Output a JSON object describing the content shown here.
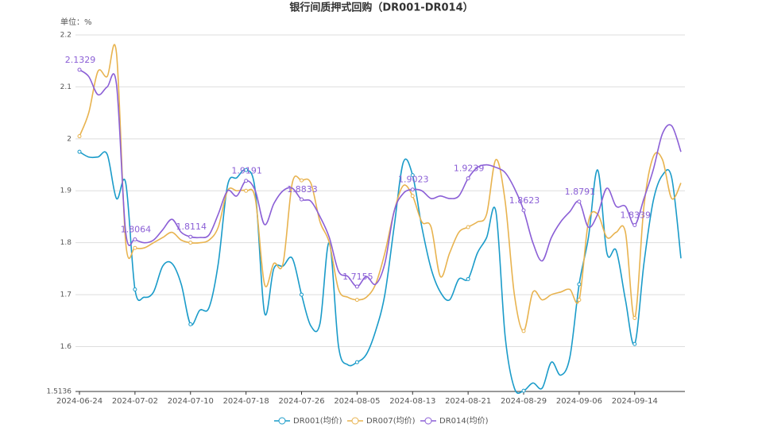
{
  "chart_data": {
    "type": "line",
    "title": "银行间质押式回购（DR001-DR014）",
    "unit_label": "单位：%",
    "categories": [
      "2024-06-24",
      null,
      null,
      null,
      null,
      null,
      "2024-07-02",
      null,
      null,
      null,
      null,
      null,
      "2024-07-10",
      null,
      null,
      null,
      null,
      null,
      "2024-07-18",
      null,
      null,
      null,
      null,
      null,
      "2024-07-26",
      null,
      null,
      null,
      null,
      null,
      "2024-08-05",
      null,
      null,
      null,
      null,
      null,
      "2024-08-13",
      null,
      null,
      null,
      null,
      null,
      "2024-08-21",
      null,
      null,
      null,
      null,
      null,
      "2024-08-29",
      null,
      null,
      null,
      null,
      null,
      "2024-09-06",
      null,
      null,
      null,
      null,
      null,
      "2024-09-14",
      null,
      null,
      null,
      null,
      null
    ],
    "series": [
      {
        "name": "DR001(均价)",
        "color": "#1a9bc9",
        "values": [
          1.975,
          1.965,
          1.965,
          1.97,
          1.885,
          1.915,
          1.71,
          1.695,
          1.705,
          1.755,
          1.76,
          1.72,
          1.643,
          1.67,
          1.675,
          1.76,
          1.91,
          1.925,
          1.94,
          1.9,
          1.665,
          1.75,
          1.755,
          1.77,
          1.7,
          1.64,
          1.645,
          1.8,
          1.6,
          1.565,
          1.57,
          1.585,
          1.63,
          1.7,
          1.83,
          1.955,
          1.93,
          1.83,
          1.75,
          1.705,
          1.69,
          1.73,
          1.73,
          1.78,
          1.81,
          1.86,
          1.62,
          1.52,
          1.515,
          1.53,
          1.52,
          1.57,
          1.545,
          1.58,
          1.72,
          1.81,
          1.94,
          1.78,
          1.785,
          1.69,
          1.605,
          1.76,
          1.88,
          1.93,
          1.925,
          1.77
        ]
      },
      {
        "name": "DR007(均价)",
        "color": "#e8b34f",
        "values": [
          2.005,
          2.05,
          2.13,
          2.12,
          2.165,
          1.8,
          1.79,
          1.79,
          1.8,
          1.81,
          1.82,
          1.805,
          1.8,
          1.8,
          1.805,
          1.83,
          1.9,
          1.9,
          1.9,
          1.885,
          1.72,
          1.76,
          1.76,
          1.915,
          1.92,
          1.915,
          1.84,
          1.8,
          1.71,
          1.695,
          1.69,
          1.695,
          1.72,
          1.78,
          1.86,
          1.91,
          1.89,
          1.84,
          1.83,
          1.735,
          1.78,
          1.82,
          1.83,
          1.84,
          1.855,
          1.96,
          1.88,
          1.7,
          1.63,
          1.705,
          1.69,
          1.7,
          1.705,
          1.71,
          1.69,
          1.84,
          1.855,
          1.81,
          1.82,
          1.82,
          1.655,
          1.87,
          1.965,
          1.96,
          1.885,
          1.915
        ]
      },
      {
        "name": "DR014(均价)",
        "color": "#8b5fd6",
        "values": [
          2.1329,
          2.12,
          2.085,
          2.1,
          2.105,
          1.82,
          1.8064,
          1.8,
          1.805,
          1.825,
          1.845,
          1.82,
          1.8114,
          1.81,
          1.815,
          1.855,
          1.9,
          1.89,
          1.9191,
          1.9,
          1.835,
          1.875,
          1.9,
          1.905,
          1.8833,
          1.88,
          1.85,
          1.81,
          1.745,
          1.735,
          1.7155,
          1.735,
          1.72,
          1.76,
          1.86,
          1.895,
          1.9023,
          1.9,
          1.885,
          1.89,
          1.885,
          1.89,
          1.9239,
          1.945,
          1.95,
          1.945,
          1.935,
          1.905,
          1.8623,
          1.8,
          1.765,
          1.81,
          1.84,
          1.86,
          1.8791,
          1.83,
          1.855,
          1.905,
          1.87,
          1.87,
          1.8339,
          1.885,
          1.94,
          2.01,
          2.025,
          1.975
        ],
        "value_labels": [
          "2.1329",
          null,
          null,
          null,
          null,
          null,
          "1.8064",
          null,
          null,
          null,
          null,
          null,
          "1.8114",
          null,
          null,
          null,
          null,
          null,
          "1.9191",
          null,
          null,
          null,
          null,
          null,
          "1.8833",
          null,
          null,
          null,
          null,
          null,
          "1.7155",
          null,
          null,
          null,
          null,
          null,
          "1.9023",
          null,
          null,
          null,
          null,
          null,
          "1.9239",
          null,
          null,
          null,
          null,
          null,
          "1.8623",
          null,
          null,
          null,
          null,
          null,
          "1.8791",
          null,
          null,
          null,
          null,
          null,
          "1.8339",
          null,
          null,
          null,
          null,
          null
        ]
      }
    ],
    "ylim": [
      1.5136,
      2.2
    ],
    "yticks": [
      1.5136,
      1.6,
      1.7,
      1.8,
      1.9,
      2,
      2.1,
      2.2
    ],
    "grid": true,
    "legend": "bottom"
  }
}
